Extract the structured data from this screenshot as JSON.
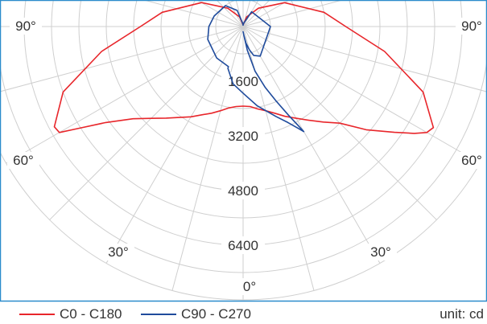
{
  "chart_data": {
    "type": "polar",
    "title": "",
    "unit_label": "unit: cd",
    "radial_ticks": [
      1600,
      3200,
      4800,
      6400
    ],
    "radial_max": 8000,
    "angle_ticks": [
      "90°",
      "60°",
      "30°",
      "0°",
      "30°",
      "60°",
      "90°"
    ],
    "series": [
      {
        "name": "C0 - C180",
        "color": "#e8262b",
        "angles": [
          -62,
          -60,
          -58,
          -55,
          -50,
          -45,
          -40,
          -35,
          -30,
          -25,
          -20,
          -15,
          -10,
          -5,
          0,
          5,
          10,
          15,
          20,
          25,
          30,
          35,
          40,
          45,
          50,
          55,
          58,
          60,
          62,
          70,
          80,
          90,
          100,
          120,
          140,
          160,
          180,
          200,
          220,
          240,
          260,
          270,
          280,
          290,
          298
        ],
        "values": [
          6250,
          6200,
          5600,
          4900,
          4200,
          3800,
          3500,
          3250,
          3050,
          2850,
          2700,
          2550,
          2420,
          2350,
          2330,
          2350,
          2450,
          2550,
          2700,
          2900,
          3100,
          3350,
          3650,
          4000,
          4700,
          5400,
          5900,
          6200,
          6300,
          5600,
          4200,
          3000,
          2400,
          1400,
          700,
          300,
          50,
          300,
          700,
          1400,
          2400,
          3000,
          4200,
          5600,
          6250
        ]
      },
      {
        "name": "C90 - C270",
        "color": "#1f4b9c",
        "angles": [
          -20,
          -10,
          0,
          10,
          20,
          25,
          28,
          30,
          29,
          27,
          24,
          20,
          15,
          10,
          5,
          0,
          5,
          10,
          15,
          20,
          30,
          90,
          150,
          175,
          180,
          185,
          200,
          220,
          250,
          270,
          290,
          320,
          340
        ],
        "values": [
          1300,
          1700,
          1950,
          2350,
          2800,
          3100,
          3350,
          3550,
          3300,
          2900,
          2400,
          1900,
          1350,
          700,
          250,
          150,
          250,
          500,
          700,
          900,
          1000,
          800,
          500,
          80,
          40,
          80,
          500,
          800,
          900,
          1000,
          1100,
          1200,
          1250
        ]
      }
    ],
    "legend_position": "bottom-left"
  }
}
